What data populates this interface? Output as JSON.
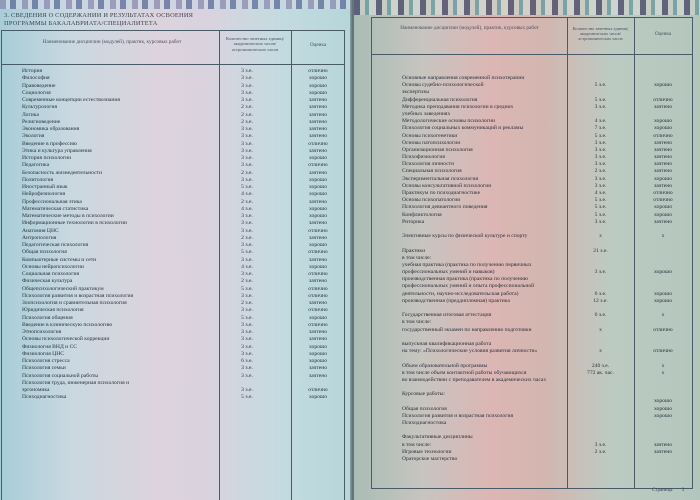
{
  "left_page": {
    "title_line1": "3. СВЕДЕНИЯ О СОДЕРЖАНИИ И РЕЗУЛЬТАТАХ ОСВОЕНИЯ",
    "title_line2": "ПРОГРАММЫ БАКАЛАВРИАТА/СПЕЦИАЛИТЕТА",
    "col_name": "Наименование дисциплин (модулей), практик, курсовых работ",
    "col_credits": "Количество зачетных единиц/ академических часов/ астрономических часов",
    "col_grade": "Оценка",
    "rows": [
      {
        "name": "История",
        "credits": "3 з.е.",
        "grade": "отлично"
      },
      {
        "name": "Философия",
        "credits": "3 з.е.",
        "grade": "хорошо"
      },
      {
        "name": "Правоведение",
        "credits": "3 з.е.",
        "grade": "хорошо"
      },
      {
        "name": "Социология",
        "credits": "3 з.е.",
        "grade": "хорошо"
      },
      {
        "name": "Современные концепции естествознания",
        "credits": "3 з.е.",
        "grade": "зачтено"
      },
      {
        "name": "Культурология",
        "credits": "2 з.е.",
        "grade": "зачтено"
      },
      {
        "name": "Логика",
        "credits": "2 з.е.",
        "grade": "зачтено"
      },
      {
        "name": "Религиоведение",
        "credits": "2 з.е.",
        "grade": "зачтено"
      },
      {
        "name": "Экономика образования",
        "credits": "3 з.е.",
        "grade": "зачтено"
      },
      {
        "name": "Экология",
        "credits": "3 з.е.",
        "grade": "зачтено"
      },
      {
        "name": "Введение в профессию",
        "credits": "3 з.е.",
        "grade": "отлично"
      },
      {
        "name": "Этика и культура управления",
        "credits": "3 з.е.",
        "grade": "зачтено"
      },
      {
        "name": "История психологии",
        "credits": "3 з.е.",
        "grade": "хорошо"
      },
      {
        "name": "Педагогика",
        "credits": "3 з.е.",
        "grade": "отлично"
      },
      {
        "name": "Безопасность жизнедеятельности",
        "credits": "2 з.е.",
        "grade": "зачтено"
      },
      {
        "name": "Политология",
        "credits": "3 з.е.",
        "grade": "хорошо"
      },
      {
        "name": "Иностранный язык",
        "credits": "5 з.е.",
        "grade": "хорошо"
      },
      {
        "name": "Нейрофизиология",
        "credits": "4 з.е.",
        "grade": "хорошо"
      },
      {
        "name": "Профессиональная этика",
        "credits": "2 з.е.",
        "grade": "зачтено"
      },
      {
        "name": "Математическая статистика",
        "credits": "4 з.е.",
        "grade": "хорошо"
      },
      {
        "name": "Математические методы в психологии",
        "credits": "3 з.е.",
        "grade": "хорошо"
      },
      {
        "name": "Информационные технологии в психологии",
        "credits": "3 з.е.",
        "grade": "зачтено"
      },
      {
        "name": "Анатомия ЦНС",
        "credits": "3 з.е.",
        "grade": "отлично"
      },
      {
        "name": "Антропология",
        "credits": "2 з.е.",
        "grade": "зачтено"
      },
      {
        "name": "Педагогическая психология",
        "credits": "3 з.е.",
        "grade": "хорошо"
      },
      {
        "name": "Общая психология",
        "credits": "5 з.е.",
        "grade": "отлично"
      },
      {
        "name": "Компьютерные системы и сети",
        "credits": "3 з.е.",
        "grade": "зачтено"
      },
      {
        "name": "Основы нейропсихологии",
        "credits": "4 з.е.",
        "grade": "хорошо"
      },
      {
        "name": "Социальная психология",
        "credits": "3 з.е.",
        "grade": "отлично"
      },
      {
        "name": "Физическая культура",
        "credits": "2 з.е.",
        "grade": "зачтено"
      },
      {
        "name": "Общепсихологический практикум",
        "credits": "5 з.е.",
        "grade": "отлично"
      },
      {
        "name": "Психология развития и возрастная психология",
        "credits": "3 з.е.",
        "grade": "отлично"
      },
      {
        "name": "Зоопсихология и сравнительная психология",
        "credits": "2 з.е.",
        "grade": "зачтено"
      },
      {
        "name": "Юридическая психология",
        "credits": "3 з.е.",
        "grade": "отлично"
      },
      {
        "name": "Психология общения",
        "credits": "5 з.е.",
        "grade": "хорошо"
      },
      {
        "name": "Введение в клиническую психологию",
        "credits": "3 з.е.",
        "grade": "отлично"
      },
      {
        "name": "Этнопсихология",
        "credits": "3 з.е.",
        "grade": "зачтено"
      },
      {
        "name": "Основы психологической коррекции",
        "credits": "3 з.е.",
        "grade": "зачтено"
      },
      {
        "name": "Физиология ВНД и СС",
        "credits": "3 з.е.",
        "grade": "хорошо"
      },
      {
        "name": "Физиология ЦНС",
        "credits": "3 з.е.",
        "grade": "хорошо"
      },
      {
        "name": "Психология стресса",
        "credits": "6 з.е.",
        "grade": "хорошо"
      },
      {
        "name": "Психология семьи",
        "credits": "3 з.е.",
        "grade": "зачтено"
      },
      {
        "name": "Психология социальной работы",
        "credits": "3 з.е.",
        "grade": "зачтено"
      },
      {
        "name": "Психология труда, инженерная психология и",
        "credits": "",
        "grade": ""
      },
      {
        "name": "эргономика",
        "credits": "3 з.е.",
        "grade": "отлично"
      },
      {
        "name": "Психодиагностика",
        "credits": "5 з.е.",
        "grade": "хорошо"
      }
    ]
  },
  "right_page": {
    "col_name": "Наименование дисциплин (модулей), практик, курсовых работ",
    "col_credits": "Количество зачетных единиц/ академических часов/ астрономических часов",
    "col_grade": "Оценка",
    "rows": [
      {
        "name": "Основные направления современной психотерапии",
        "credits": "",
        "grade": ""
      },
      {
        "name": "Основы судебно-психологической",
        "credits": "5 з.е.",
        "grade": "хорошо"
      },
      {
        "name": "экспертизы",
        "credits": "",
        "grade": ""
      },
      {
        "name": "Дифференциальная психология",
        "credits": "5 з.е.",
        "grade": "отлично"
      },
      {
        "name": "Методика преподавания психологии в средних",
        "credits": "3 з.е.",
        "grade": "зачтено"
      },
      {
        "name": "учебных заведениях",
        "credits": "",
        "grade": ""
      },
      {
        "name": "Методологические основы психологии",
        "credits": "4 з.е.",
        "grade": "хорошо"
      },
      {
        "name": "Психология социальных коммуникаций и рекламы",
        "credits": "7 з.е.",
        "grade": "хорошо"
      },
      {
        "name": "Основы психогенетики",
        "credits": "5 з.е.",
        "grade": "отлично"
      },
      {
        "name": "Основы патопсихологии",
        "credits": "3 з.е.",
        "grade": "зачтено"
      },
      {
        "name": "Организационная психология",
        "credits": "3 з.е.",
        "grade": "зачтено"
      },
      {
        "name": "Психофизиология",
        "credits": "3 з.е.",
        "grade": "зачтено"
      },
      {
        "name": "Психология личности",
        "credits": "3 з.е.",
        "grade": "зачтено"
      },
      {
        "name": "Специальная психология",
        "credits": "2 з.е.",
        "grade": "зачтено"
      },
      {
        "name": "Экспериментальная психология",
        "credits": "3 з.е.",
        "grade": "хорошо"
      },
      {
        "name": "Основы консультативной психологии",
        "credits": "3 з.е.",
        "grade": "зачтено"
      },
      {
        "name": "Практикум по психодиагностике",
        "credits": "4 з.е.",
        "grade": "отлично"
      },
      {
        "name": "Основы психопатологии",
        "credits": "5 з.е.",
        "grade": "отлично"
      },
      {
        "name": "Психология девиантного поведения",
        "credits": "5 з.е.",
        "grade": "хорошо"
      },
      {
        "name": "Конфликтология",
        "credits": "5 з.е.",
        "grade": "хорошо"
      },
      {
        "name": "Риторика",
        "credits": "3 з.е.",
        "grade": "зачтено"
      },
      {
        "name": "",
        "credits": "",
        "grade": ""
      },
      {
        "name": "Элективные курсы по физической культуре и спорту",
        "credits": "x",
        "grade": "x"
      },
      {
        "name": "",
        "credits": "",
        "grade": ""
      },
      {
        "name": "Практики",
        "credits": "21 з.е.",
        "grade": ""
      },
      {
        "name": "в том числе:",
        "credits": "",
        "grade": ""
      },
      {
        "name": "учебная практика (практика по получению первичных",
        "credits": "",
        "grade": ""
      },
      {
        "name": "профессиональных умений и навыков)",
        "credits": "3 з.е.",
        "grade": "хорошо"
      },
      {
        "name": "производственная практика (практика по получению",
        "credits": "",
        "grade": ""
      },
      {
        "name": "профессиональных умений и опыта профессиональной",
        "credits": "",
        "grade": ""
      },
      {
        "name": "деятельности, научно-исследовательская работа)",
        "credits": "6 з.е.",
        "grade": "хорошо"
      },
      {
        "name": "производственная (преддипломная) практика",
        "credits": "12 з.е.",
        "grade": "хорошо"
      },
      {
        "name": "",
        "credits": "",
        "grade": ""
      },
      {
        "name": "Государственная итоговая аттестация",
        "credits": "6 з.е.",
        "grade": "x"
      },
      {
        "name": "в том числе:",
        "credits": "",
        "grade": ""
      },
      {
        "name": "государственный экзамен по направлению подготовки",
        "credits": "x",
        "grade": "отлично"
      },
      {
        "name": "",
        "credits": "",
        "grade": ""
      },
      {
        "name": "выпускная квалификационная работа",
        "credits": "",
        "grade": ""
      },
      {
        "name": "на тему: «Психологические условия развития личности»",
        "credits": "x",
        "grade": "отлично"
      },
      {
        "name": "",
        "credits": "",
        "grade": ""
      },
      {
        "name": "Объем образовательной программы",
        "credits": "240 з.е.",
        "grade": "x"
      },
      {
        "name": "в том числе объем контактной работы обучающихся",
        "credits": "772 ак. час.",
        "grade": "x"
      },
      {
        "name": "во взаимодействии с преподавателем в академических часах",
        "credits": "",
        "grade": ""
      },
      {
        "name": "",
        "credits": "",
        "grade": ""
      },
      {
        "name": "Курсовые работы:",
        "credits": "",
        "grade": ""
      },
      {
        "name": "",
        "credits": "",
        "grade": "хорошо"
      },
      {
        "name": "Общая психология",
        "credits": "",
        "grade": "хорошо"
      },
      {
        "name": "Психология развития и возрастная психология",
        "credits": "",
        "grade": "хорошо"
      },
      {
        "name": "Психодиагностика",
        "credits": "",
        "grade": ""
      },
      {
        "name": "",
        "credits": "",
        "grade": ""
      },
      {
        "name": "Факультативные дисциплины",
        "credits": "",
        "grade": ""
      },
      {
        "name": "в том числе:",
        "credits": "3 з.е.",
        "grade": "зачтено"
      },
      {
        "name": "Игровые технологии",
        "credits": "2 з.е.",
        "grade": "зачтено"
      },
      {
        "name": "Ораторское мастерство",
        "credits": "",
        "grade": ""
      }
    ],
    "footer_label": "Страница",
    "page_number": "3"
  }
}
